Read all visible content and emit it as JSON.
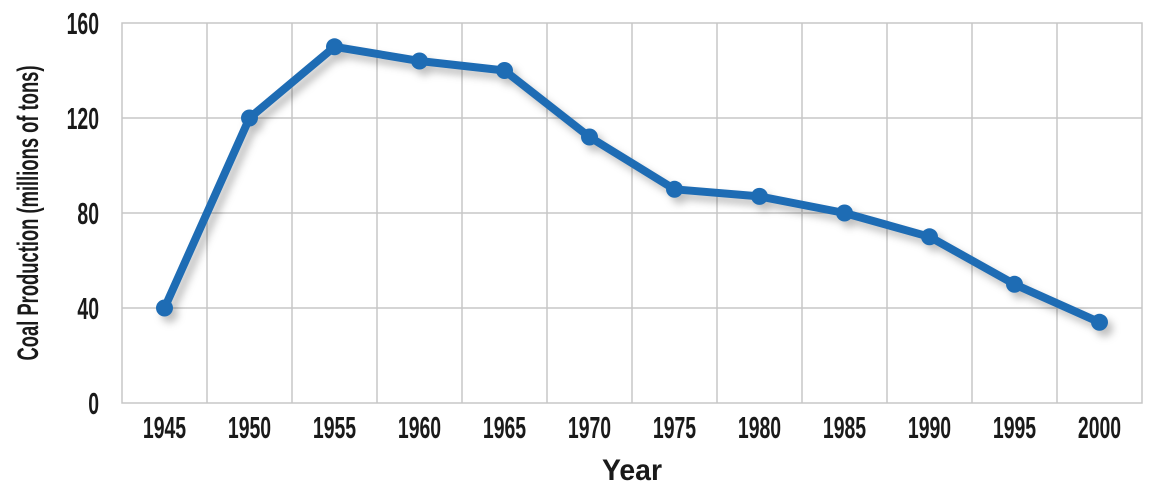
{
  "chart_data": {
    "type": "line",
    "title": "",
    "xlabel": "Year",
    "ylabel": "Coal Production (millions of tons)",
    "categories": [
      "1945",
      "1950",
      "1955",
      "1960",
      "1965",
      "1970",
      "1975",
      "1980",
      "1985",
      "1990",
      "1995",
      "2000"
    ],
    "series": [
      {
        "name": "Coal production",
        "values": [
          40,
          120,
          150,
          144,
          140,
          112,
          90,
          87,
          80,
          70,
          50,
          34
        ]
      }
    ],
    "ylim": [
      0,
      160
    ],
    "yticks": [
      0,
      40,
      80,
      120,
      160
    ],
    "grid": true,
    "legend": "none",
    "marker": "circle",
    "line_color": "#1E6CB4",
    "grid_color": "#C7C7C7",
    "text_color": "#1A1A1A",
    "background": "#FFFFFF"
  }
}
